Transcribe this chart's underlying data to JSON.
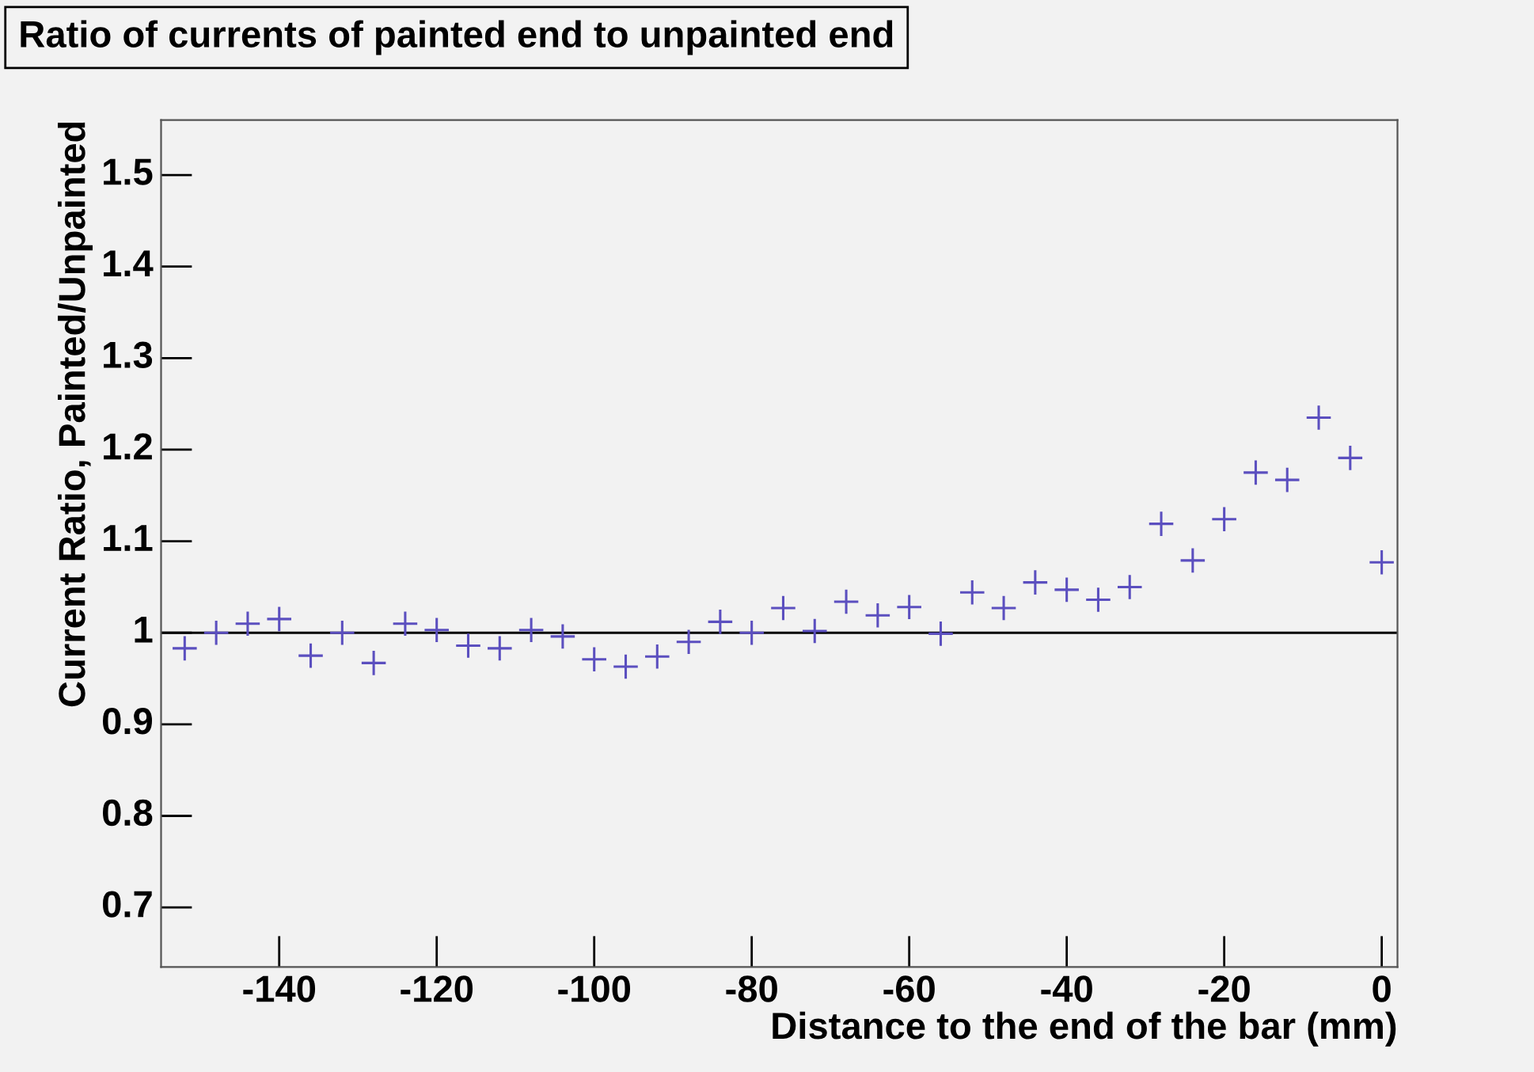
{
  "chart_data": {
    "type": "scatter",
    "title": "Ratio of currents of painted end to unpainted end",
    "xlabel": "Distance to the end of the bar (mm)",
    "ylabel": "Current Ratio, Painted/Unpainted",
    "x": [
      -152,
      -148,
      -144,
      -140,
      -136,
      -132,
      -128,
      -124,
      -120,
      -116,
      -112,
      -108,
      -104,
      -100,
      -96,
      -92,
      -88,
      -84,
      -80,
      -76,
      -72,
      -68,
      -64,
      -60,
      -56,
      -52,
      -48,
      -44,
      -40,
      -36,
      -32,
      -28,
      -24,
      -20,
      -16,
      -12,
      -8,
      -4,
      0
    ],
    "series": [
      {
        "color": "#5b4fbf",
        "values": [
          0.983,
          1.0,
          1.01,
          1.015,
          0.975,
          1.0,
          0.967,
          1.01,
          1.003,
          0.986,
          0.983,
          1.003,
          0.996,
          0.971,
          0.963,
          0.974,
          0.99,
          1.012,
          1.0,
          1.027,
          1.002,
          1.034,
          1.019,
          1.028,
          0.999,
          1.044,
          1.027,
          1.055,
          1.047,
          1.036,
          1.05,
          1.119,
          1.079,
          1.124,
          1.175,
          1.167,
          1.235,
          1.191,
          1.077
        ]
      }
    ],
    "xlim": [
      -155,
      2
    ],
    "ylim": [
      0.635,
      1.56
    ],
    "xticks": [
      -140,
      -120,
      -100,
      -80,
      -60,
      -40,
      -20,
      0
    ],
    "yticks": [
      0.7,
      0.8,
      0.9,
      1,
      1.1,
      1.2,
      1.3,
      1.4,
      1.5
    ],
    "ref_lines": [
      {
        "axis": "y",
        "value": 1,
        "color": "#000000"
      }
    ],
    "marker": "cross",
    "grid": false,
    "legend": false
  }
}
